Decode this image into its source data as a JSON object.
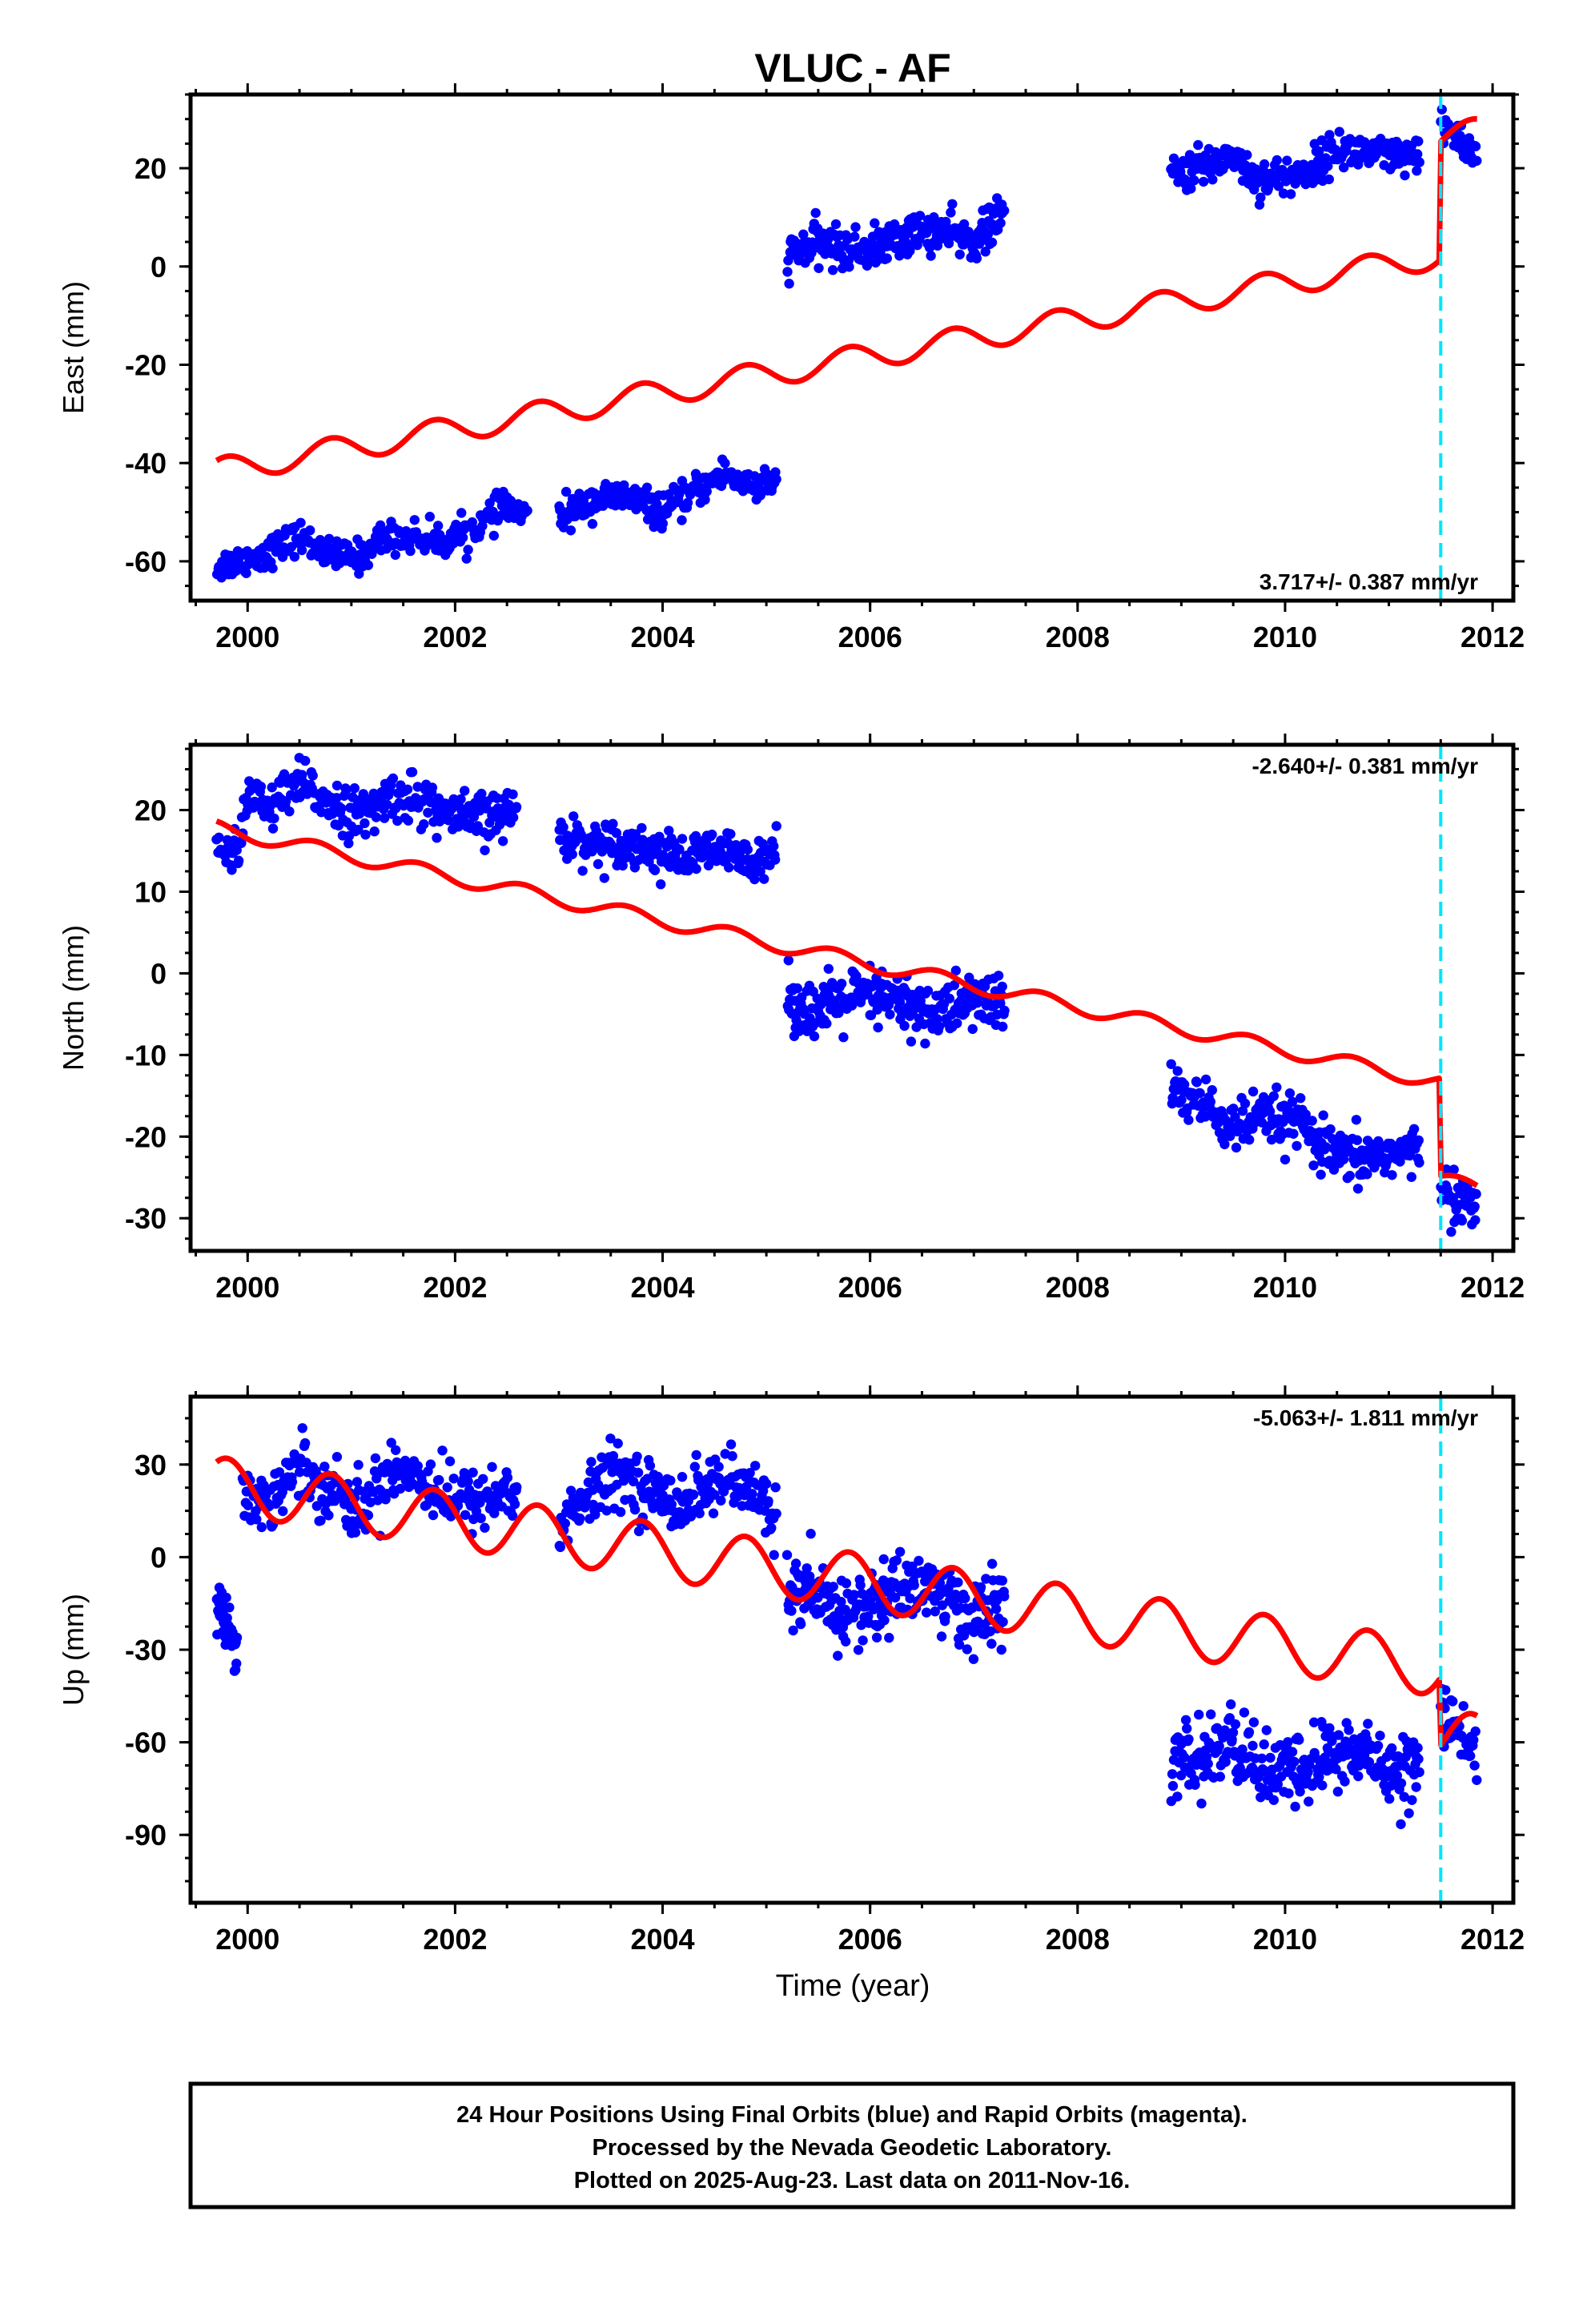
{
  "title": "VLUC - AF",
  "xlabel": "Time (year)",
  "footer": {
    "line1": "24 Hour Positions Using Final Orbits (blue) and Rapid Orbits (magenta).",
    "line2": "Processed by the Nevada Geodetic Laboratory.",
    "line3": "Plotted on 2025-Aug-23. Last data on 2011-Nov-16."
  },
  "colors": {
    "points": "#0000ff",
    "model": "#ff0000",
    "marker": "#00e5ff",
    "frame": "#000000"
  },
  "chart_data": [
    {
      "type": "scatter",
      "component": "east",
      "ylabel": "East (mm)",
      "rate_label": "3.717+/- 0.387 mm/yr",
      "rate_position": "bottom-right",
      "xlim": [
        1999.45,
        2012.2
      ],
      "ylim": [
        -68,
        35
      ],
      "xticks": [
        2000,
        2002,
        2004,
        2006,
        2008,
        2010,
        2012
      ],
      "xtick_labels": [
        "2000",
        "2002",
        "2004",
        "2006",
        "2008",
        "2010",
        "2012"
      ],
      "yticks": [
        -60,
        -40,
        -20,
        0,
        20
      ],
      "ytick_labels": [
        "-60",
        "-40",
        "-20",
        "0",
        "20"
      ],
      "equipment_change": 2011.5,
      "series": [
        {
          "role": "observed daily positions (final orbits)",
          "segments": [
            {
              "x": [
                1999.7,
                2000.1,
                2000.5,
                2000.8,
                2001.1,
                2001.3,
                2001.6,
                2001.9,
                2002.2,
                2002.5,
                2002.7
              ],
              "y": [
                -61,
                -59,
                -55,
                -59,
                -59,
                -55,
                -55,
                -56,
                -53,
                -49,
                -51
              ],
              "noise": 1.6,
              "n": 290
            },
            {
              "x": [
                2003.0,
                2003.4,
                2003.7,
                2004.0,
                2004.3,
                2004.6,
                2004.9,
                2005.1
              ],
              "y": [
                -51,
                -47,
                -47,
                -50,
                -46,
                -42,
                -45,
                -44
              ],
              "noise": 1.6,
              "n": 230
            },
            {
              "x": [
                2005.2,
                2005.5,
                2005.8,
                2006.1,
                2006.4,
                2006.7,
                2007.0,
                2007.3
              ],
              "y": [
                2,
                5,
                3,
                4,
                7,
                7,
                5,
                11
              ],
              "noise": 2.0,
              "n": 260
            },
            {
              "x": [
                2008.9,
                2009.2,
                2009.5,
                2009.7,
                2009.9,
                2010.2,
                2010.5,
                2010.8,
                2011.1,
                2011.3
              ],
              "y": [
                19,
                20,
                23,
                18,
                18,
                19,
                24,
                23,
                22,
                22
              ],
              "noise": 1.9,
              "n": 280
            },
            {
              "x": [
                2011.5,
                2011.65,
                2011.85
              ],
              "y": [
                28,
                27,
                22
              ],
              "noise": 1.8,
              "n": 40
            }
          ]
        },
        {
          "role": "model fit",
          "rate": 3.717,
          "offset_2000": -40.5,
          "seasonal_amplitude": 2.6,
          "seasonal_phase": 0.55,
          "jumps": [
            {
              "x": 2011.5,
              "size": 24
            }
          ],
          "x_range": [
            1999.7,
            2011.85
          ]
        }
      ]
    },
    {
      "type": "scatter",
      "component": "north",
      "ylabel": "North (mm)",
      "rate_label": "-2.640+/- 0.381 mm/yr",
      "rate_position": "top-right",
      "xlim": [
        1999.45,
        2012.2
      ],
      "ylim": [
        -34,
        28
      ],
      "xticks": [
        2000,
        2002,
        2004,
        2006,
        2008,
        2010,
        2012
      ],
      "xtick_labels": [
        "2000",
        "2002",
        "2004",
        "2006",
        "2008",
        "2010",
        "2012"
      ],
      "yticks": [
        -30,
        -20,
        -10,
        0,
        10,
        20
      ],
      "ytick_labels": [
        "-30",
        "-20",
        "-10",
        "0",
        "10",
        "20"
      ],
      "equipment_change": 2011.5,
      "series": [
        {
          "role": "observed daily positions (final orbits)",
          "segments": [
            {
              "x": [
                1999.7,
                1999.85,
                2000.0,
                2000.2,
                2000.5,
                2000.8,
                2001.1,
                2001.4,
                2001.7,
                2002.0,
                2002.3,
                2002.6
              ],
              "y": [
                17,
                13,
                22,
                20,
                23,
                21,
                19,
                22,
                21,
                19,
                19,
                20
              ],
              "noise": 1.5,
              "n": 300
            },
            {
              "x": [
                2003.0,
                2003.3,
                2003.6,
                2003.9,
                2004.2,
                2004.5,
                2004.8,
                2005.1
              ],
              "y": [
                17,
                16,
                16,
                15,
                14,
                15,
                14,
                15
              ],
              "noise": 1.3,
              "n": 230
            },
            {
              "x": [
                2005.2,
                2005.5,
                2005.8,
                2006.1,
                2006.4,
                2006.7,
                2007.0,
                2007.3
              ],
              "y": [
                -3,
                -5,
                -3,
                -3,
                -4,
                -5,
                -3,
                -4
              ],
              "noise": 1.8,
              "n": 260
            },
            {
              "x": [
                2008.9,
                2009.2,
                2009.5,
                2009.8,
                2010.1,
                2010.4,
                2010.7,
                2011.0,
                2011.3
              ],
              "y": [
                -14,
                -16,
                -19,
                -18,
                -18,
                -22,
                -23,
                -22,
                -22
              ],
              "noise": 1.6,
              "n": 280
            },
            {
              "x": [
                2011.5,
                2011.65,
                2011.85
              ],
              "y": [
                -25,
                -28,
                -28
              ],
              "noise": 1.4,
              "n": 40
            }
          ]
        },
        {
          "role": "model fit",
          "rate": -2.64,
          "offset_2000": 17.0,
          "seasonal_amplitude": 0.9,
          "seasonal_phase": 0.4,
          "jumps": [
            {
              "x": 2011.5,
              "size": -12
            }
          ],
          "x_range": [
            1999.7,
            2011.85
          ]
        }
      ]
    },
    {
      "type": "scatter",
      "component": "up",
      "ylabel": "Up (mm)",
      "rate_label": "-5.063+/- 1.811 mm/yr",
      "rate_position": "top-right",
      "xlim": [
        1999.45,
        2012.2
      ],
      "ylim": [
        -112,
        52
      ],
      "xticks": [
        2000,
        2002,
        2004,
        2006,
        2008,
        2010,
        2012
      ],
      "xtick_labels": [
        "2000",
        "2002",
        "2004",
        "2006",
        "2008",
        "2010",
        "2012"
      ],
      "yticks": [
        -90,
        -60,
        -30,
        0,
        30
      ],
      "ytick_labels": [
        "-90",
        "-60",
        "-30",
        "0",
        "30"
      ],
      "equipment_change": 2011.5,
      "series": [
        {
          "role": "observed daily positions (final orbits)",
          "segments": [
            {
              "x": [
                1999.7,
                1999.8,
                1999.9
              ],
              "y": [
                -15,
                -22,
                -28
              ],
              "noise": 4.0,
              "n": 45
            },
            {
              "x": [
                1999.95,
                2000.2,
                2000.5,
                2000.8,
                2001.1,
                2001.4,
                2001.7,
                2002.0,
                2002.3,
                2002.6
              ],
              "y": [
                20,
                18,
                30,
                22,
                15,
                30,
                25,
                18,
                20,
                20
              ],
              "noise": 5.0,
              "n": 300
            },
            {
              "x": [
                2003.0,
                2003.3,
                2003.6,
                2003.9,
                2004.2,
                2004.5,
                2004.8,
                2005.1
              ],
              "y": [
                10,
                20,
                28,
                20,
                18,
                25,
                22,
                14
              ],
              "noise": 5.0,
              "n": 230
            },
            {
              "x": [
                2005.2,
                2005.5,
                2005.8,
                2006.1,
                2006.4,
                2006.7,
                2007.0,
                2007.3
              ],
              "y": [
                -10,
                -15,
                -18,
                -15,
                -8,
                -12,
                -20,
                -15
              ],
              "noise": 6.0,
              "n": 280
            },
            {
              "x": [
                2008.9,
                2009.2,
                2009.5,
                2009.8,
                2010.1,
                2010.4,
                2010.7,
                2011.0,
                2011.3
              ],
              "y": [
                -68,
                -65,
                -60,
                -70,
                -70,
                -65,
                -63,
                -68,
                -68
              ],
              "noise": 6.0,
              "n": 290
            },
            {
              "x": [
                2011.5,
                2011.65,
                2011.85
              ],
              "y": [
                -50,
                -55,
                -68
              ],
              "noise": 5.0,
              "n": 40
            }
          ]
        },
        {
          "role": "model fit",
          "rate": -5.063,
          "offset_2000": 22.0,
          "seasonal_amplitude": 9.0,
          "seasonal_phase": 0.55,
          "jumps": [
            {
              "x": 2011.5,
              "size": -22
            }
          ],
          "x_range": [
            1999.7,
            2011.85
          ]
        }
      ]
    }
  ]
}
